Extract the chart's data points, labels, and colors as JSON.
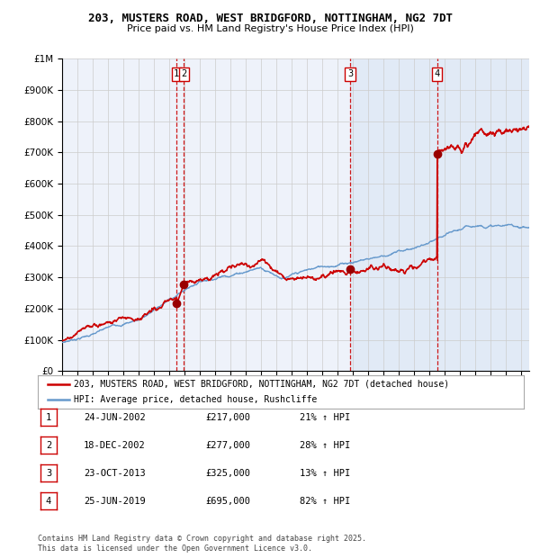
{
  "title": "203, MUSTERS ROAD, WEST BRIDGFORD, NOTTINGHAM, NG2 7DT",
  "subtitle": "Price paid vs. HM Land Registry's House Price Index (HPI)",
  "legend_line1": "203, MUSTERS ROAD, WEST BRIDGFORD, NOTTINGHAM, NG2 7DT (detached house)",
  "legend_line2": "HPI: Average price, detached house, Rushcliffe",
  "footer1": "Contains HM Land Registry data © Crown copyright and database right 2025.",
  "footer2": "This data is licensed under the Open Government Licence v3.0.",
  "transactions": [
    {
      "id": 1,
      "date": "24-JUN-2002",
      "price": "£217,000",
      "pct": "21% ↑ HPI"
    },
    {
      "id": 2,
      "date": "18-DEC-2002",
      "price": "£277,000",
      "pct": "28% ↑ HPI"
    },
    {
      "id": 3,
      "date": "23-OCT-2013",
      "price": "£325,000",
      "pct": "13% ↑ HPI"
    },
    {
      "id": 4,
      "date": "25-JUN-2019",
      "price": "£695,000",
      "pct": "82% ↑ HPI"
    }
  ],
  "transaction_years": [
    2002.48,
    2002.96,
    2013.81,
    2019.48
  ],
  "transaction_prices": [
    217000,
    277000,
    325000,
    695000
  ],
  "ylim": [
    0,
    1000000
  ],
  "xlim_start": 1995,
  "xlim_end": 2025.5,
  "red_color": "#cc0000",
  "blue_color": "#6699cc",
  "shade_color": "#dce8f5",
  "chart_bg": "#eef2fa",
  "marker_dot_color": "#990000"
}
